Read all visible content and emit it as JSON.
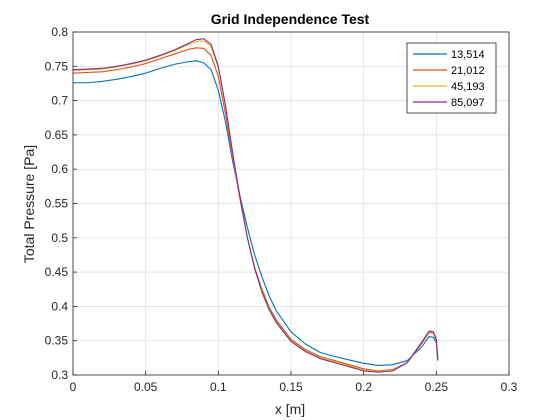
{
  "chart_data": {
    "type": "line",
    "title": "Grid Independence Test",
    "xlabel": "x [m]",
    "ylabel": "Total Pressure [Pa]",
    "xlim": [
      0,
      0.3
    ],
    "ylim": [
      0.3,
      0.8
    ],
    "xticks": [
      "0",
      "0.05",
      "0.1",
      "0.15",
      "0.2",
      "0.25",
      "0.3"
    ],
    "yticks": [
      "0.3",
      "0.35",
      "0.4",
      "0.45",
      "0.5",
      "0.55",
      "0.6",
      "0.65",
      "0.7",
      "0.75",
      "0.8"
    ],
    "grid": true,
    "legend_position": "top-right",
    "series": [
      {
        "name": "13,514",
        "color": "#0072BD",
        "points": [
          [
            0,
            0.726
          ],
          [
            0.01,
            0.726
          ],
          [
            0.02,
            0.728
          ],
          [
            0.03,
            0.731
          ],
          [
            0.04,
            0.735
          ],
          [
            0.05,
            0.74
          ],
          [
            0.06,
            0.747
          ],
          [
            0.07,
            0.753
          ],
          [
            0.08,
            0.757
          ],
          [
            0.085,
            0.758
          ],
          [
            0.09,
            0.755
          ],
          [
            0.095,
            0.745
          ],
          [
            0.1,
            0.715
          ],
          [
            0.105,
            0.668
          ],
          [
            0.11,
            0.61
          ],
          [
            0.115,
            0.56
          ],
          [
            0.12,
            0.515
          ],
          [
            0.125,
            0.475
          ],
          [
            0.13,
            0.443
          ],
          [
            0.135,
            0.415
          ],
          [
            0.14,
            0.393
          ],
          [
            0.15,
            0.363
          ],
          [
            0.16,
            0.345
          ],
          [
            0.17,
            0.333
          ],
          [
            0.18,
            0.327
          ],
          [
            0.19,
            0.322
          ],
          [
            0.2,
            0.317
          ],
          [
            0.21,
            0.314
          ],
          [
            0.22,
            0.315
          ],
          [
            0.23,
            0.321
          ],
          [
            0.24,
            0.341
          ],
          [
            0.245,
            0.356
          ],
          [
            0.248,
            0.355
          ],
          [
            0.25,
            0.347
          ],
          [
            0.251,
            0.327
          ]
        ]
      },
      {
        "name": "21,012",
        "color": "#D95319",
        "points": [
          [
            0,
            0.74
          ],
          [
            0.01,
            0.741
          ],
          [
            0.02,
            0.742
          ],
          [
            0.03,
            0.745
          ],
          [
            0.04,
            0.749
          ],
          [
            0.05,
            0.754
          ],
          [
            0.06,
            0.761
          ],
          [
            0.07,
            0.768
          ],
          [
            0.08,
            0.775
          ],
          [
            0.085,
            0.777
          ],
          [
            0.09,
            0.776
          ],
          [
            0.095,
            0.766
          ],
          [
            0.1,
            0.735
          ],
          [
            0.105,
            0.68
          ],
          [
            0.11,
            0.615
          ],
          [
            0.115,
            0.555
          ],
          [
            0.12,
            0.5
          ],
          [
            0.125,
            0.457
          ],
          [
            0.13,
            0.425
          ],
          [
            0.135,
            0.399
          ],
          [
            0.14,
            0.38
          ],
          [
            0.15,
            0.352
          ],
          [
            0.16,
            0.337
          ],
          [
            0.17,
            0.327
          ],
          [
            0.18,
            0.321
          ],
          [
            0.19,
            0.315
          ],
          [
            0.2,
            0.309
          ],
          [
            0.21,
            0.306
          ],
          [
            0.22,
            0.308
          ],
          [
            0.23,
            0.318
          ],
          [
            0.24,
            0.346
          ],
          [
            0.245,
            0.362
          ],
          [
            0.248,
            0.361
          ],
          [
            0.25,
            0.35
          ],
          [
            0.251,
            0.322
          ]
        ]
      },
      {
        "name": "45,193",
        "color": "#EDB120",
        "points": [
          [
            0,
            0.744
          ],
          [
            0.01,
            0.745
          ],
          [
            0.02,
            0.746
          ],
          [
            0.03,
            0.749
          ],
          [
            0.04,
            0.753
          ],
          [
            0.05,
            0.758
          ],
          [
            0.06,
            0.765
          ],
          [
            0.07,
            0.773
          ],
          [
            0.08,
            0.782
          ],
          [
            0.085,
            0.786
          ],
          [
            0.09,
            0.787
          ],
          [
            0.095,
            0.779
          ],
          [
            0.1,
            0.748
          ],
          [
            0.105,
            0.69
          ],
          [
            0.11,
            0.62
          ],
          [
            0.115,
            0.557
          ],
          [
            0.12,
            0.5
          ],
          [
            0.125,
            0.455
          ],
          [
            0.13,
            0.422
          ],
          [
            0.135,
            0.396
          ],
          [
            0.14,
            0.377
          ],
          [
            0.15,
            0.35
          ],
          [
            0.16,
            0.335
          ],
          [
            0.17,
            0.325
          ],
          [
            0.18,
            0.319
          ],
          [
            0.19,
            0.313
          ],
          [
            0.2,
            0.307
          ],
          [
            0.21,
            0.305
          ],
          [
            0.22,
            0.307
          ],
          [
            0.23,
            0.318
          ],
          [
            0.24,
            0.348
          ],
          [
            0.245,
            0.363
          ],
          [
            0.248,
            0.362
          ],
          [
            0.25,
            0.351
          ],
          [
            0.251,
            0.322
          ]
        ]
      },
      {
        "name": "85,097",
        "color": "#7E2F8E",
        "points": [
          [
            0,
            0.745
          ],
          [
            0.01,
            0.746
          ],
          [
            0.02,
            0.747
          ],
          [
            0.03,
            0.75
          ],
          [
            0.04,
            0.754
          ],
          [
            0.05,
            0.759
          ],
          [
            0.06,
            0.766
          ],
          [
            0.07,
            0.774
          ],
          [
            0.08,
            0.784
          ],
          [
            0.085,
            0.789
          ],
          [
            0.09,
            0.79
          ],
          [
            0.095,
            0.782
          ],
          [
            0.1,
            0.75
          ],
          [
            0.105,
            0.692
          ],
          [
            0.11,
            0.622
          ],
          [
            0.115,
            0.558
          ],
          [
            0.12,
            0.5
          ],
          [
            0.125,
            0.455
          ],
          [
            0.13,
            0.421
          ],
          [
            0.135,
            0.395
          ],
          [
            0.14,
            0.376
          ],
          [
            0.15,
            0.349
          ],
          [
            0.16,
            0.334
          ],
          [
            0.17,
            0.324
          ],
          [
            0.18,
            0.318
          ],
          [
            0.19,
            0.312
          ],
          [
            0.2,
            0.306
          ],
          [
            0.21,
            0.304
          ],
          [
            0.22,
            0.306
          ],
          [
            0.23,
            0.318
          ],
          [
            0.24,
            0.348
          ],
          [
            0.245,
            0.364
          ],
          [
            0.248,
            0.363
          ],
          [
            0.25,
            0.352
          ],
          [
            0.251,
            0.322
          ]
        ]
      }
    ]
  }
}
